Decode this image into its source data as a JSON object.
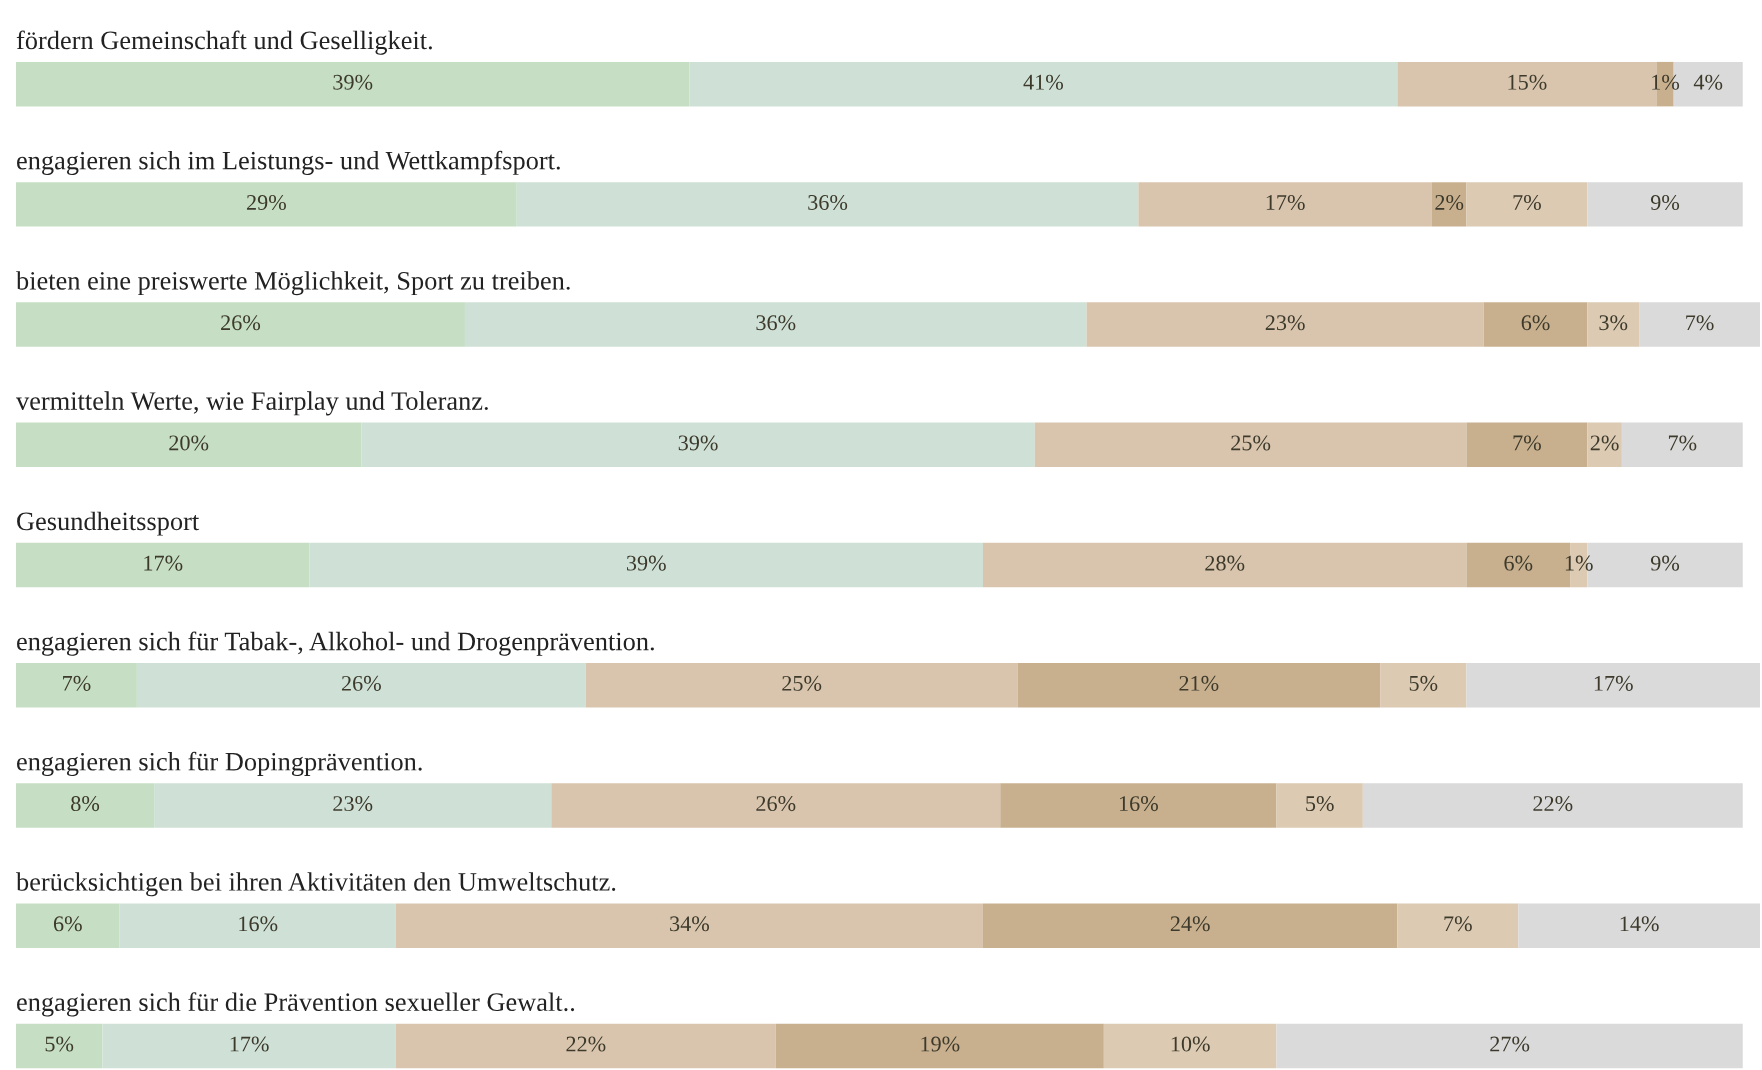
{
  "chart_data": {
    "type": "bar",
    "orientation": "horizontal",
    "stacked": true,
    "relative": false,
    "categories": [
      "fördern Gemeinschaft und Geselligkeit.",
      "engagieren sich im Leistungs- und Wettkampfsport.",
      "bieten eine preiswerte Möglichkeit, Sport zu treiben.",
      "vermitteln Werte, wie Fairplay und Toleranz.",
      "Gesundheitssport",
      "engagieren sich für Tabak-, Alkohol- und Drogenprävention.",
      "engagieren sich für Dopingprävention.",
      "berücksichtigen bei ihren Aktivitäten den Umweltschutz.",
      "engagieren sich für die Prävention sexueller Gewalt.."
    ],
    "xlim": [
      0,
      101
    ],
    "tick_labels": false,
    "series": [
      {
        "color": "#c6dfc4",
        "values": [
          39,
          29,
          26,
          20,
          17,
          7,
          8,
          6,
          5
        ],
        "value_labels": [
          "39%",
          "29%",
          "26%",
          "20%",
          "17%",
          "7%",
          "8%",
          "6%",
          "5%"
        ]
      },
      {
        "color": "#cfe1d6",
        "values": [
          41,
          36,
          36,
          39,
          39,
          26,
          23,
          16,
          17
        ],
        "value_labels": [
          "41%",
          "36%",
          "36%",
          "39%",
          "39%",
          "26%",
          "23%",
          "16%",
          "17%"
        ]
      },
      {
        "color": "#d9c5ae",
        "values": [
          15,
          17,
          23,
          25,
          28,
          25,
          26,
          34,
          22
        ],
        "value_labels": [
          "15%",
          "17%",
          "23%",
          "25%",
          "28%",
          "25%",
          "26%",
          "34%",
          "22%"
        ]
      },
      {
        "color": "#c8b08f",
        "values": [
          1,
          2,
          6,
          7,
          6,
          21,
          16,
          24,
          19
        ],
        "value_labels": [
          "1%",
          "2%",
          "6%",
          "7%",
          "6%",
          "21%",
          "16%",
          "24%",
          "19%"
        ]
      },
      {
        "color": "#dccab3",
        "values": [
          null,
          7,
          3,
          2,
          1,
          5,
          5,
          7,
          10
        ],
        "value_labels": [
          null,
          "7%",
          "3%",
          "2%",
          "1%",
          "5%",
          "5%",
          "7%",
          "10%"
        ]
      },
      {
        "color": "#dadada",
        "values": [
          4,
          9,
          7,
          7,
          9,
          17,
          22,
          14,
          27
        ],
        "value_labels": [
          "4%",
          "9%",
          "7%",
          "7%",
          "9%",
          "17%",
          "22%",
          "14%",
          "27%"
        ]
      }
    ]
  }
}
